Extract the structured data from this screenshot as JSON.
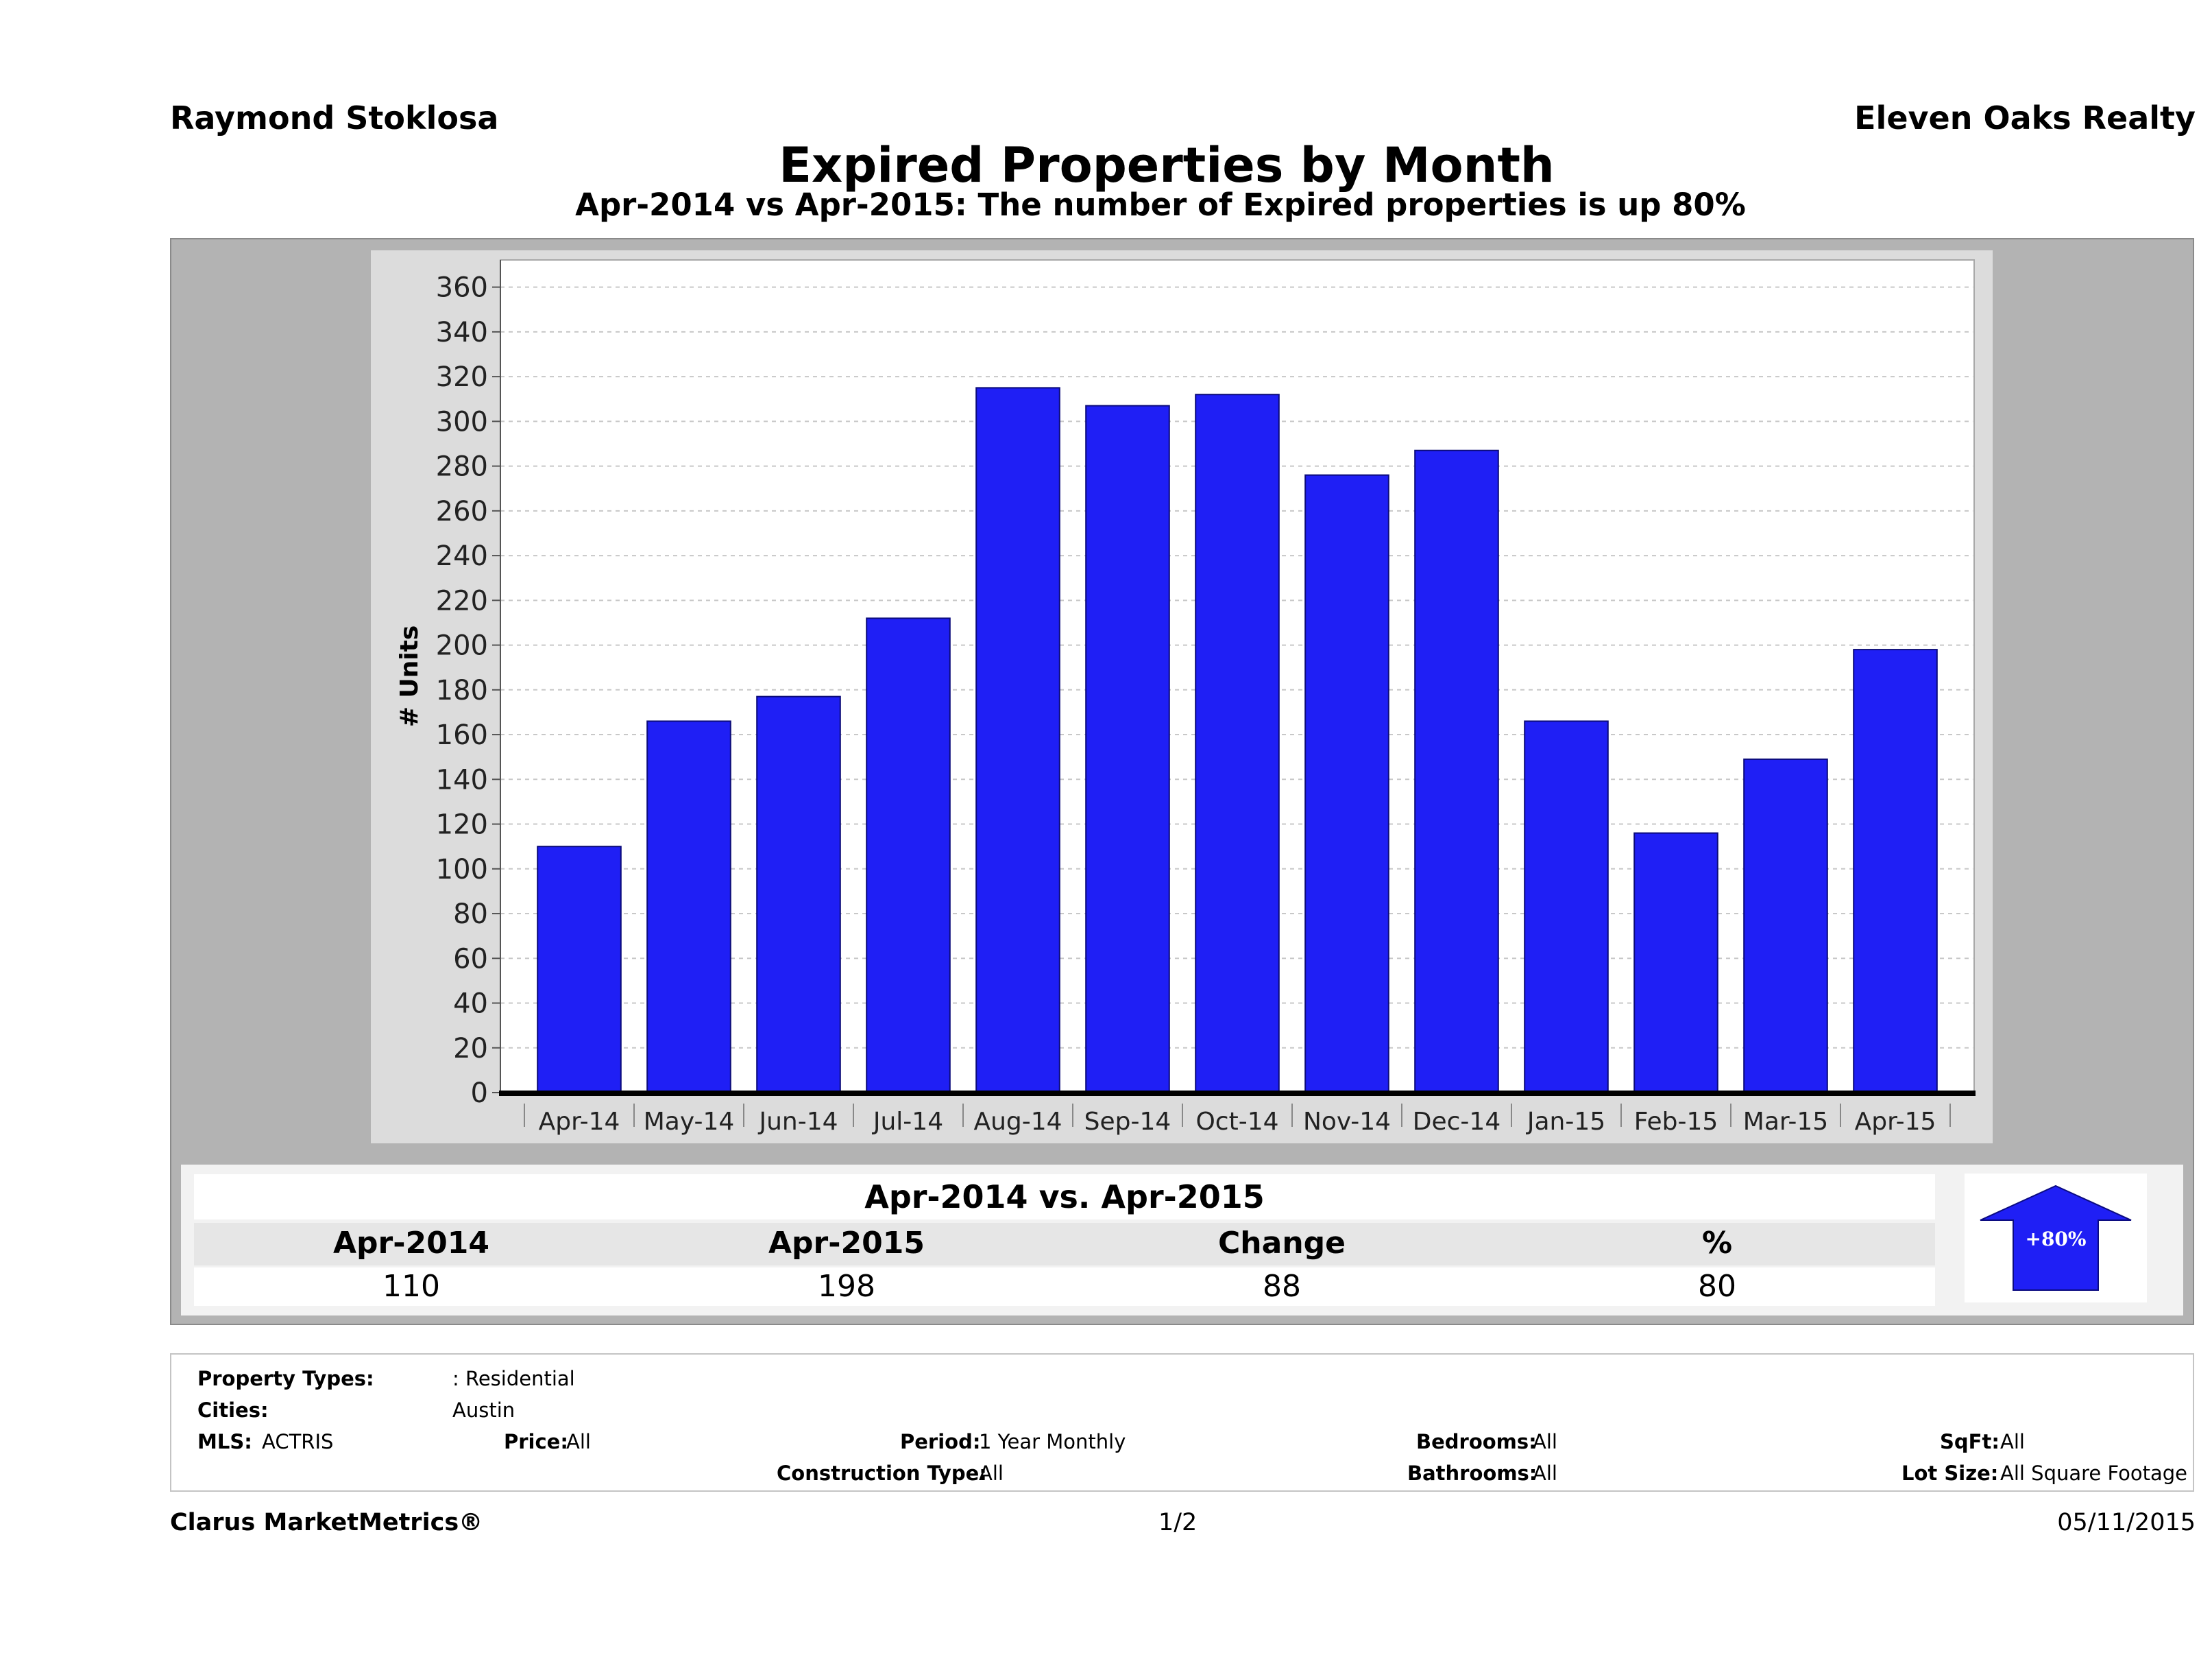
{
  "header": {
    "agent": "Raymond Stoklosa",
    "brokerage": "Eleven Oaks Realty"
  },
  "chart_data": {
    "type": "bar",
    "title": "Expired Properties by Month",
    "subtitle": "Apr-2014 vs Apr-2015: The number of Expired   properties is up 80%",
    "ylabel": "# Units",
    "xlabel": "",
    "ylim": [
      0,
      370
    ],
    "yticks": [
      0,
      20,
      40,
      60,
      80,
      100,
      120,
      140,
      160,
      180,
      200,
      220,
      240,
      260,
      280,
      300,
      320,
      340,
      360
    ],
    "grid": true,
    "bar_color": "#1f1ff5",
    "categories": [
      "Apr-14",
      "May-14",
      "Jun-14",
      "Jul-14",
      "Aug-14",
      "Sep-14",
      "Oct-14",
      "Nov-14",
      "Dec-14",
      "Jan-15",
      "Feb-15",
      "Mar-15",
      "Apr-15"
    ],
    "values": [
      110,
      166,
      177,
      212,
      315,
      307,
      312,
      276,
      287,
      166,
      116,
      149,
      198
    ]
  },
  "summary": {
    "title": "Apr-2014 vs. Apr-2015",
    "headers": [
      "Apr-2014",
      "Apr-2015",
      "Change",
      "%"
    ],
    "values": [
      "110",
      "198",
      "88",
      "80"
    ],
    "badge": "+80%",
    "badge_color": "#1f1ff5"
  },
  "info": {
    "property_types_label": "Property Types:",
    "property_types_value": ": Residential",
    "cities_label": "Cities:",
    "cities_value": "Austin",
    "mls_label": "MLS:",
    "mls_value": "ACTRIS",
    "price_label": "Price:",
    "price_value": "All",
    "period_label": "Period:",
    "period_value": "1 Year Monthly",
    "construction_label": "Construction Type:",
    "construction_value": "All",
    "bedrooms_label": "Bedrooms:",
    "bedrooms_value": "All",
    "bathrooms_label": "Bathrooms:",
    "bathrooms_value": "All",
    "sqft_label": "SqFt:",
    "sqft_value": "All",
    "lotsize_label": "Lot Size:",
    "lotsize_value": "All Square Footage"
  },
  "footer": {
    "brand": "Clarus MarketMetrics®",
    "page": "1/2",
    "date": "05/11/2015"
  }
}
